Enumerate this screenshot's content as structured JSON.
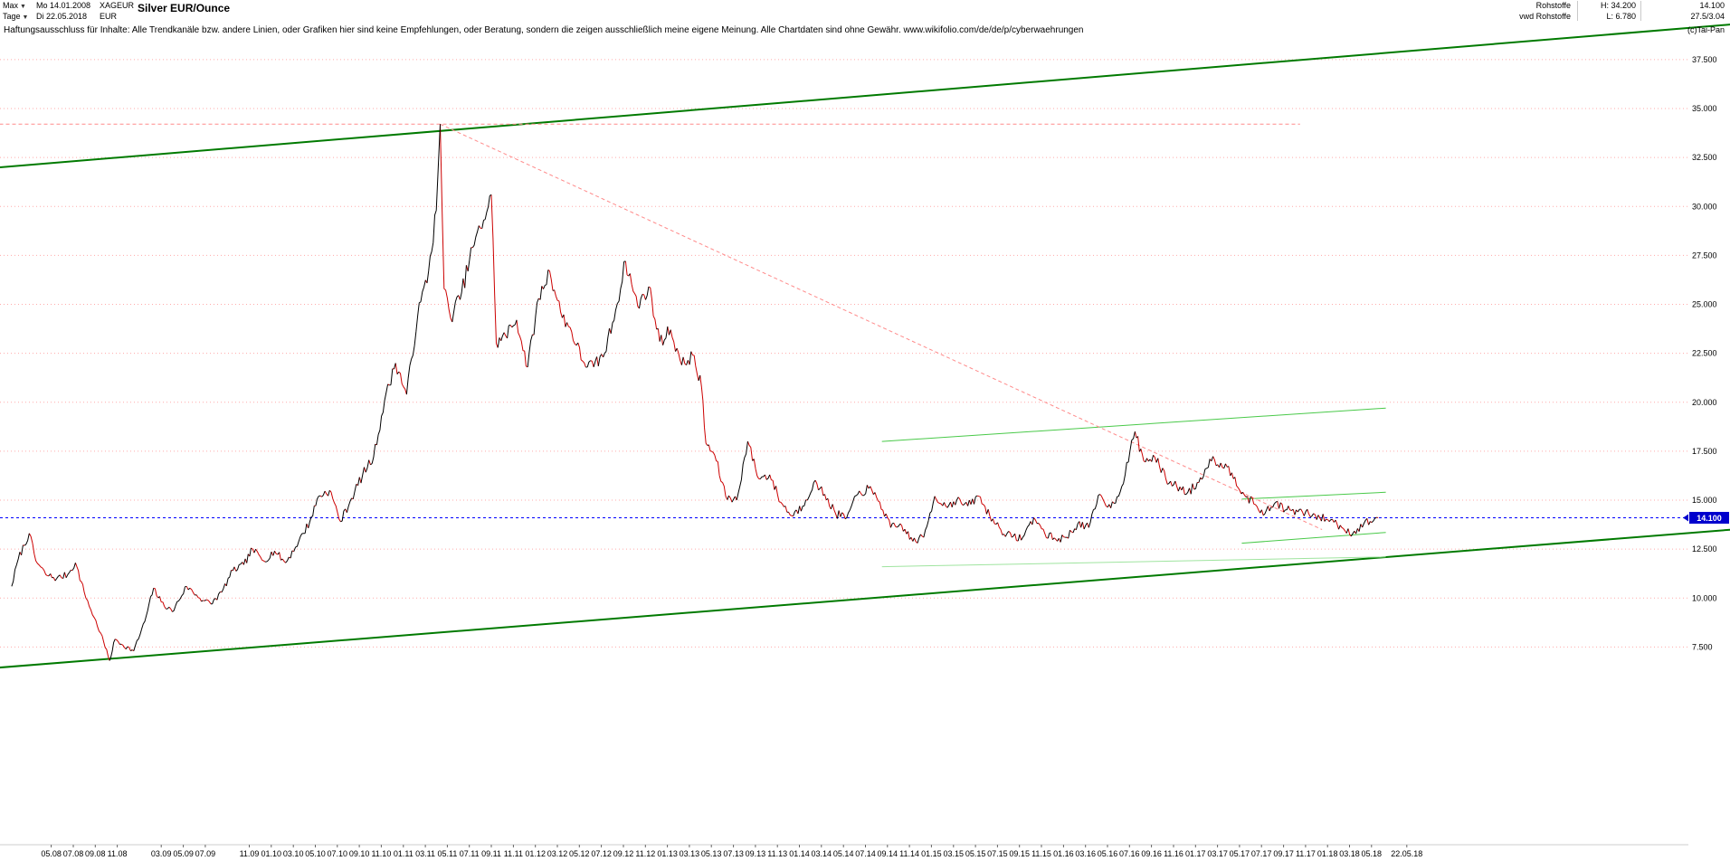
{
  "header": {
    "range_selector": "Max",
    "period_selector": "Tage",
    "start_date": "Mo 14.01.2008",
    "end_date": "Di 22.05.2018",
    "symbol": "XAGEUR",
    "currency": "EUR",
    "title": "Silver EUR/Ounce",
    "category": "Rohstoffe",
    "source": "vwd Rohstoffe",
    "high_label": "H: 34.200",
    "low_label": "L: 6.780",
    "last_price": "14.100",
    "quote_info": "27.5/3.04",
    "copyright": "(c)Tai-Pan"
  },
  "icons": {
    "dropdown": "▼"
  },
  "disclaimer": "Haftungsausschluss für Inhalte: Alle Trendkanäle bzw. andere Linien, oder Grafiken hier sind keine Empfehlungen, oder Beratung, sondern die zeigen ausschließlich meine eigene Meinung. Alle Chartdaten sind ohne Gewähr.  www.wikifolio.com/de/de/p/cyberwaehrungen",
  "chart_data": {
    "type": "line",
    "title": "Silver EUR/Ounce",
    "instrument": "XAGEUR",
    "period_high": 34.2,
    "period_low": 6.78,
    "last": 14.1,
    "x_axis": {
      "unit": "months since 2008-01",
      "start_label": "14.01.2008",
      "end_label": "22.05.2018",
      "ticks": [
        {
          "t": 4,
          "label": "05.08"
        },
        {
          "t": 6,
          "label": "07.08"
        },
        {
          "t": 8,
          "label": "09.08"
        },
        {
          "t": 10,
          "label": "11.08"
        },
        {
          "t": 14,
          "label": "03.09"
        },
        {
          "t": 16,
          "label": "05.09"
        },
        {
          "t": 18,
          "label": "07.09"
        },
        {
          "t": 22,
          "label": "11.09"
        },
        {
          "t": 24,
          "label": "01.10"
        },
        {
          "t": 26,
          "label": "03.10"
        },
        {
          "t": 28,
          "label": "05.10"
        },
        {
          "t": 30,
          "label": "07.10"
        },
        {
          "t": 32,
          "label": "09.10"
        },
        {
          "t": 34,
          "label": "11.10"
        },
        {
          "t": 36,
          "label": "01.11"
        },
        {
          "t": 38,
          "label": "03.11"
        },
        {
          "t": 40,
          "label": "05.11"
        },
        {
          "t": 42,
          "label": "07.11"
        },
        {
          "t": 44,
          "label": "09.11"
        },
        {
          "t": 46,
          "label": "11.11"
        },
        {
          "t": 48,
          "label": "01.12"
        },
        {
          "t": 50,
          "label": "03.12"
        },
        {
          "t": 52,
          "label": "05.12"
        },
        {
          "t": 54,
          "label": "07.12"
        },
        {
          "t": 56,
          "label": "09.12"
        },
        {
          "t": 58,
          "label": "11.12"
        },
        {
          "t": 60,
          "label": "01.13"
        },
        {
          "t": 62,
          "label": "03.13"
        },
        {
          "t": 64,
          "label": "05.13"
        },
        {
          "t": 66,
          "label": "07.13"
        },
        {
          "t": 68,
          "label": "09.13"
        },
        {
          "t": 70,
          "label": "11.13"
        },
        {
          "t": 72,
          "label": "01.14"
        },
        {
          "t": 74,
          "label": "03.14"
        },
        {
          "t": 76,
          "label": "05.14"
        },
        {
          "t": 78,
          "label": "07.14"
        },
        {
          "t": 80,
          "label": "09.14"
        },
        {
          "t": 82,
          "label": "11.14"
        },
        {
          "t": 84,
          "label": "01.15"
        },
        {
          "t": 86,
          "label": "03.15"
        },
        {
          "t": 88,
          "label": "05.15"
        },
        {
          "t": 90,
          "label": "07.15"
        },
        {
          "t": 92,
          "label": "09.15"
        },
        {
          "t": 94,
          "label": "11.15"
        },
        {
          "t": 96,
          "label": "01.16"
        },
        {
          "t": 98,
          "label": "03.16"
        },
        {
          "t": 100,
          "label": "05.16"
        },
        {
          "t": 102,
          "label": "07.16"
        },
        {
          "t": 104,
          "label": "09.16"
        },
        {
          "t": 106,
          "label": "11.16"
        },
        {
          "t": 108,
          "label": "01.17"
        },
        {
          "t": 110,
          "label": "03.17"
        },
        {
          "t": 112,
          "label": "05.17"
        },
        {
          "t": 114,
          "label": "07.17"
        },
        {
          "t": 116,
          "label": "09.17"
        },
        {
          "t": 118,
          "label": "11.17"
        },
        {
          "t": 120,
          "label": "01.18"
        },
        {
          "t": 122,
          "label": "03.18"
        },
        {
          "t": 124,
          "label": "05.18"
        },
        {
          "t": 127.2,
          "label": "22.05.18"
        }
      ]
    },
    "y_axis": {
      "position": "right",
      "min": 6.0,
      "max": 39.0,
      "grid": true,
      "ticks": [
        37.5,
        35,
        32.5,
        30,
        27.5,
        25,
        22.5,
        20,
        17.5,
        15,
        12.5,
        10,
        7.5
      ],
      "tick_labels": [
        "37.500",
        "35.000",
        "32.500",
        "30.000",
        "27.500",
        "25.000",
        "22.500",
        "20.000",
        "17.500",
        "15.000",
        "12.500",
        "10.000",
        "7.500"
      ]
    },
    "series": [
      {
        "name": "XAGEUR close",
        "up_color": "#000000",
        "down_color": "#cc0000",
        "points": [
          [
            0.4,
            10.6
          ],
          [
            1,
            12.0
          ],
          [
            2,
            13.3
          ],
          [
            2.6,
            11.9
          ],
          [
            3.5,
            11.2
          ],
          [
            4.5,
            11.0
          ],
          [
            5.5,
            11.2
          ],
          [
            6.2,
            11.8
          ],
          [
            7,
            10.3
          ],
          [
            7.6,
            9.4
          ],
          [
            8.5,
            8.2
          ],
          [
            9.3,
            6.8
          ],
          [
            9.8,
            7.9
          ],
          [
            10.5,
            7.6
          ],
          [
            11.5,
            7.3
          ],
          [
            12.5,
            8.8
          ],
          [
            13.3,
            10.5
          ],
          [
            14,
            9.8
          ],
          [
            15,
            9.3
          ],
          [
            16.3,
            10.6
          ],
          [
            17.5,
            10.0
          ],
          [
            18.5,
            9.7
          ],
          [
            19.5,
            10.3
          ],
          [
            20.5,
            11.4
          ],
          [
            21.5,
            11.7
          ],
          [
            22.3,
            12.5
          ],
          [
            23.3,
            11.9
          ],
          [
            24.3,
            12.4
          ],
          [
            25.3,
            11.8
          ],
          [
            26.5,
            12.9
          ],
          [
            27.5,
            13.9
          ],
          [
            28.3,
            15.2
          ],
          [
            29.3,
            15.5
          ],
          [
            30.3,
            13.9
          ],
          [
            31.3,
            15.1
          ],
          [
            32.3,
            16.3
          ],
          [
            33.3,
            17.2
          ],
          [
            34.3,
            20.1
          ],
          [
            35.3,
            22.0
          ],
          [
            36.3,
            20.4
          ],
          [
            37.3,
            24.4
          ],
          [
            38.3,
            26.7
          ],
          [
            39.0,
            29.8
          ],
          [
            39.35,
            34.2
          ],
          [
            39.7,
            25.8
          ],
          [
            40.3,
            24.3
          ],
          [
            41.3,
            25.6
          ],
          [
            42.3,
            27.9
          ],
          [
            43.3,
            29.3
          ],
          [
            44.0,
            30.6
          ],
          [
            44.45,
            23.0
          ],
          [
            45.3,
            23.4
          ],
          [
            46.3,
            24.2
          ],
          [
            47.3,
            21.8
          ],
          [
            48.3,
            25.3
          ],
          [
            49.3,
            26.7
          ],
          [
            50.3,
            24.6
          ],
          [
            51.3,
            23.6
          ],
          [
            52.3,
            22.1
          ],
          [
            53.3,
            21.8
          ],
          [
            54.3,
            22.5
          ],
          [
            55.3,
            24.7
          ],
          [
            56.2,
            27.2
          ],
          [
            57.3,
            24.9
          ],
          [
            58.3,
            25.9
          ],
          [
            59.3,
            23.1
          ],
          [
            60.3,
            23.7
          ],
          [
            61.3,
            21.9
          ],
          [
            62.3,
            22.4
          ],
          [
            63.1,
            20.8
          ],
          [
            63.5,
            17.9
          ],
          [
            64.3,
            17.3
          ],
          [
            65.3,
            15.2
          ],
          [
            66.3,
            15.0
          ],
          [
            67.3,
            18.0
          ],
          [
            68.3,
            16.1
          ],
          [
            69.3,
            16.3
          ],
          [
            70.3,
            14.9
          ],
          [
            71.3,
            14.2
          ],
          [
            72.3,
            14.7
          ],
          [
            73.3,
            15.9
          ],
          [
            74.3,
            15.3
          ],
          [
            75.3,
            14.3
          ],
          [
            76.3,
            14.1
          ],
          [
            77.3,
            15.3
          ],
          [
            78.3,
            15.6
          ],
          [
            79.3,
            14.9
          ],
          [
            80.3,
            13.6
          ],
          [
            81.3,
            13.7
          ],
          [
            82.3,
            12.9
          ],
          [
            83.3,
            13.1
          ],
          [
            84.3,
            15.2
          ],
          [
            85.3,
            14.7
          ],
          [
            86.3,
            15.0
          ],
          [
            87.3,
            14.7
          ],
          [
            88.3,
            15.2
          ],
          [
            89.3,
            14.2
          ],
          [
            90.3,
            13.5
          ],
          [
            91.3,
            13.1
          ],
          [
            92.3,
            13.1
          ],
          [
            93.3,
            14.1
          ],
          [
            94.3,
            13.3
          ],
          [
            95.3,
            13.0
          ],
          [
            96.3,
            13.1
          ],
          [
            97.3,
            13.8
          ],
          [
            98.3,
            13.6
          ],
          [
            99.3,
            15.3
          ],
          [
            100.3,
            14.6
          ],
          [
            101.3,
            15.7
          ],
          [
            102.5,
            18.5
          ],
          [
            103.3,
            17.0
          ],
          [
            104.3,
            17.2
          ],
          [
            105.3,
            16.1
          ],
          [
            106.3,
            15.7
          ],
          [
            107.3,
            15.4
          ],
          [
            108.3,
            15.9
          ],
          [
            109.3,
            17.1
          ],
          [
            110.3,
            16.9
          ],
          [
            111.3,
            16.4
          ],
          [
            112.3,
            15.4
          ],
          [
            113.3,
            14.8
          ],
          [
            114.3,
            14.3
          ],
          [
            115.3,
            14.9
          ],
          [
            116.3,
            14.5
          ],
          [
            117.3,
            14.4
          ],
          [
            118.3,
            14.3
          ],
          [
            119.3,
            14.1
          ],
          [
            120.3,
            14.0
          ],
          [
            121.3,
            13.6
          ],
          [
            122.3,
            13.3
          ],
          [
            123.3,
            13.8
          ],
          [
            124.6,
            14.1
          ]
        ]
      }
    ],
    "current_price": {
      "value": 14.1,
      "label": "14.100",
      "line_color": "#0000ff",
      "box_color": "#0000cd",
      "text_color": "#ffffff"
    },
    "resistance_line": {
      "value": 34.2,
      "t_start": -0.7,
      "t_end": 117.5,
      "color": "#ff8a8a",
      "style": "dashed"
    },
    "downtrend_line": {
      "t1": 39.35,
      "v1": 34.2,
      "t2": 119.5,
      "v2": 13.5,
      "color": "#ff8a8a",
      "style": "dashed"
    },
    "trend_lines": [
      {
        "name": "upper-channel",
        "t1": -0.7,
        "v1": 32.0,
        "t2": 156.8,
        "v2": 39.3,
        "color": "#007a00",
        "width": 2
      },
      {
        "name": "lower-channel",
        "t1": -0.7,
        "v1": 6.45,
        "t2": 156.8,
        "v2": 13.5,
        "color": "#007a00",
        "width": 2
      },
      {
        "name": "mid-trend-upper",
        "t1": 79.5,
        "v1": 18.0,
        "t2": 125.3,
        "v2": 19.7,
        "color": "#49c949",
        "width": 1
      },
      {
        "name": "mid-trend-lower",
        "t1": 79.5,
        "v1": 11.6,
        "t2": 125.3,
        "v2": 12.1,
        "color": "#9fe49f",
        "width": 1
      },
      {
        "name": "wedge-upper",
        "t1": 112.2,
        "v1": 15.05,
        "t2": 125.3,
        "v2": 15.4,
        "color": "#49c949",
        "width": 1
      },
      {
        "name": "wedge-lower",
        "t1": 112.2,
        "v1": 12.8,
        "t2": 125.3,
        "v2": 13.35,
        "color": "#49c949",
        "width": 1
      }
    ],
    "grid_color": "#ffaaaa",
    "noise_pct": 1.6,
    "legend": "none"
  }
}
